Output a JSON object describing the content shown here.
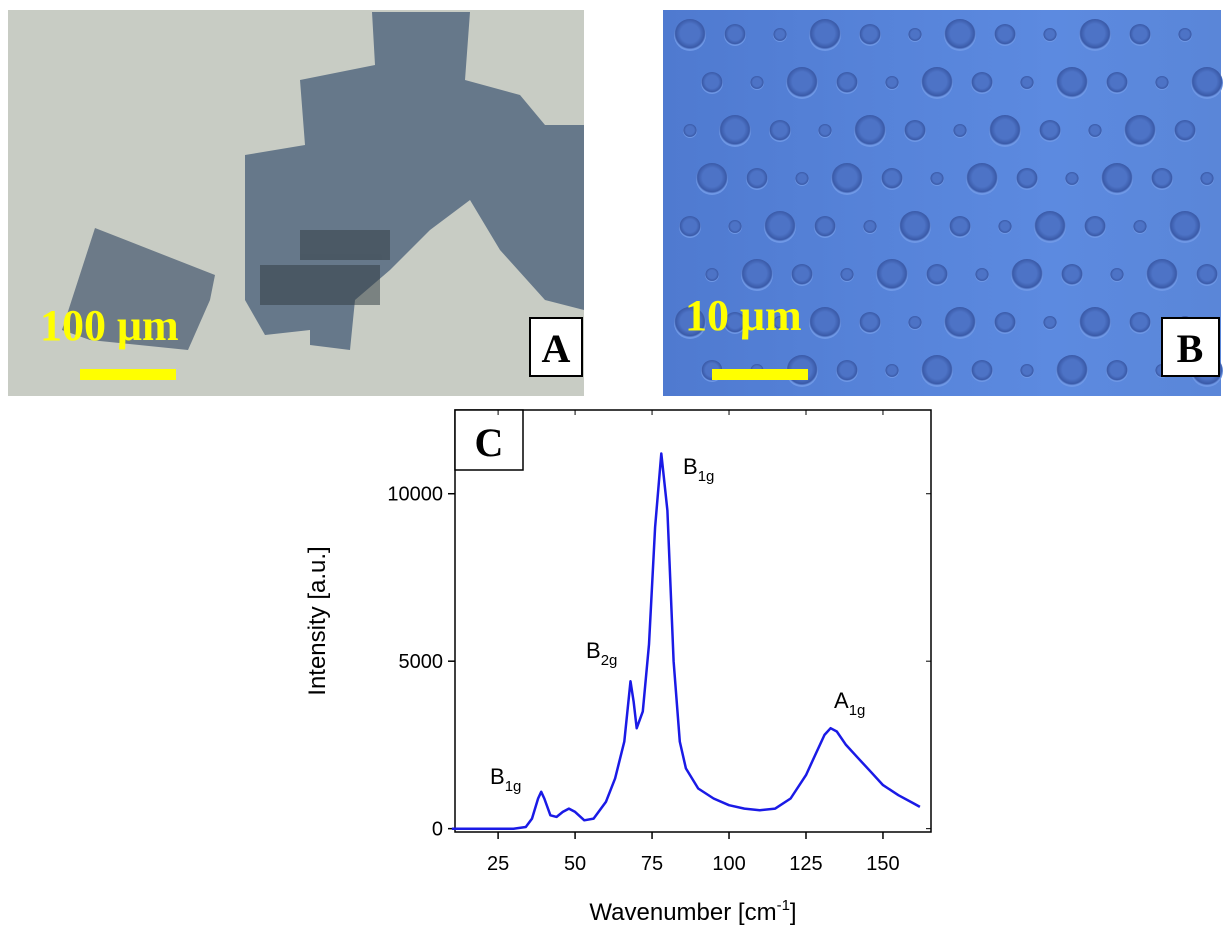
{
  "panels": {
    "a": {
      "label": "A",
      "scale_text": "100 μm"
    },
    "b": {
      "label": "B",
      "scale_text": "10 μm"
    }
  },
  "chart_data": {
    "type": "line",
    "panel_label": "C",
    "x_label": {
      "text": "Wavenumber [cm",
      "sup": "-1",
      "end": "]"
    },
    "y_label": "Intensity [a.u.]",
    "color": "#1a1ae6",
    "x": [
      10,
      30,
      34,
      36,
      38,
      39,
      40,
      42,
      44,
      46,
      48,
      50,
      53,
      56,
      60,
      63,
      66,
      68,
      69,
      70,
      72,
      74,
      76,
      78,
      80,
      82,
      84,
      86,
      90,
      95,
      100,
      105,
      110,
      115,
      120,
      125,
      128,
      131,
      133,
      135,
      138,
      142,
      146,
      150,
      155,
      160,
      162
    ],
    "values": [
      0,
      0,
      50,
      300,
      900,
      1100,
      900,
      400,
      350,
      500,
      600,
      500,
      250,
      300,
      800,
      1500,
      2600,
      4400,
      3800,
      3000,
      3500,
      5500,
      9000,
      11200,
      9500,
      5000,
      2600,
      1800,
      1200,
      900,
      700,
      600,
      550,
      600,
      900,
      1600,
      2200,
      2800,
      3000,
      2900,
      2500,
      2100,
      1700,
      1300,
      1000,
      750,
      650
    ],
    "xlim": [
      11,
      165.6
    ],
    "ylim": [
      -100,
      12500
    ],
    "xticks": [
      25,
      50,
      75,
      100,
      125,
      150
    ],
    "yticks": [
      0,
      5000,
      10000
    ],
    "annotations": [
      {
        "text": "B",
        "sub": "1g"
      },
      {
        "text": "B",
        "sub": "2g"
      },
      {
        "text": "B",
        "sub": "1g"
      },
      {
        "text": "A",
        "sub": "1g"
      }
    ]
  }
}
